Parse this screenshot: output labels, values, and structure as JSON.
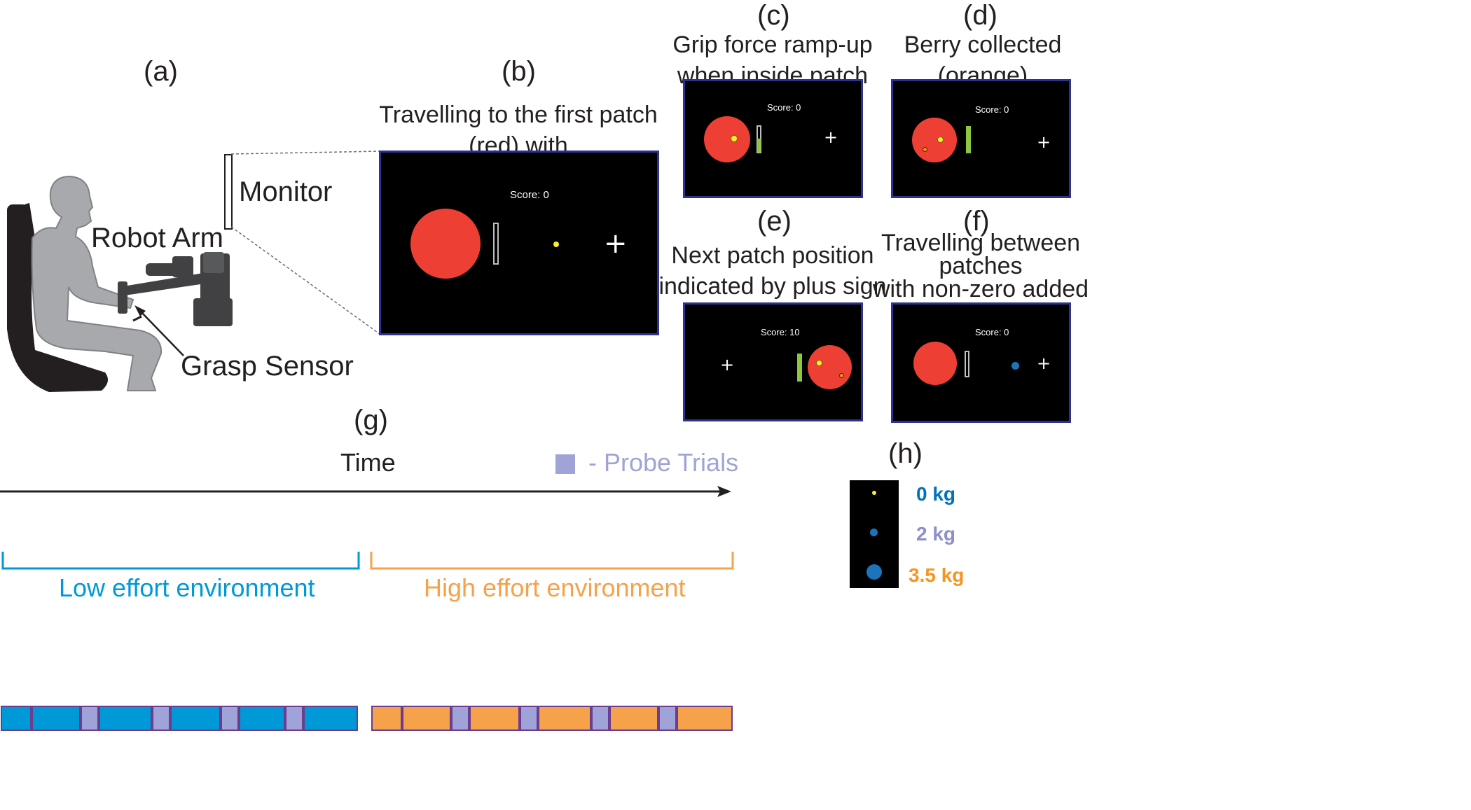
{
  "panel_labels": {
    "a": "(a)",
    "b": "(b)",
    "c": "(c)",
    "d": "(d)",
    "e": "(e)",
    "f": "(f)",
    "g": "(g)",
    "h": "(h)"
  },
  "setup": {
    "monitor": "Monitor",
    "robot_arm": "Robot Arm",
    "grasp_sensor": "Grasp Sensor"
  },
  "captions": {
    "b": "Travelling to the first patch (red) with\ncursor (yellow)",
    "c": "Grip force ramp-up\nwhen inside patch",
    "d": "Berry collected (orange)\nwhen force at threshold",
    "e": "Next patch position\nindicated by plus sign",
    "f": "Travelling between patches\nwith non-zero added mass\n(blue cursor)"
  },
  "scores": {
    "b": "Score: 0",
    "c": "Score: 0",
    "d": "Score: 0",
    "e": "Score: 10",
    "f": "Score: 0"
  },
  "plus_glyph": "+",
  "timeline": {
    "time_label": "Time",
    "probe_label": "- Probe Trials",
    "low_label": "Low effort environment",
    "high_label": "High effort environment",
    "low_blocks": [
      "normal",
      "normal",
      "probe",
      "normal",
      "probe",
      "normal",
      "probe",
      "normal",
      "probe",
      "normal"
    ],
    "high_blocks": [
      "normal",
      "normal",
      "probe",
      "normal",
      "probe",
      "normal",
      "probe",
      "normal",
      "probe",
      "normal"
    ]
  },
  "legend": {
    "items": [
      {
        "label": "0 kg",
        "color": "#0072bc"
      },
      {
        "label": "2 kg",
        "color": "#8c8fc9"
      },
      {
        "label": "3.5 kg",
        "color": "#f7941d"
      }
    ]
  },
  "colors": {
    "low": "#0099d8",
    "high": "#f5a24a",
    "probe": "#9fa3d7",
    "patch": "#ed3f34",
    "cursor": "#f9ed32",
    "blue_cursor": "#1c75bc",
    "bar": "#8dc63f"
  }
}
